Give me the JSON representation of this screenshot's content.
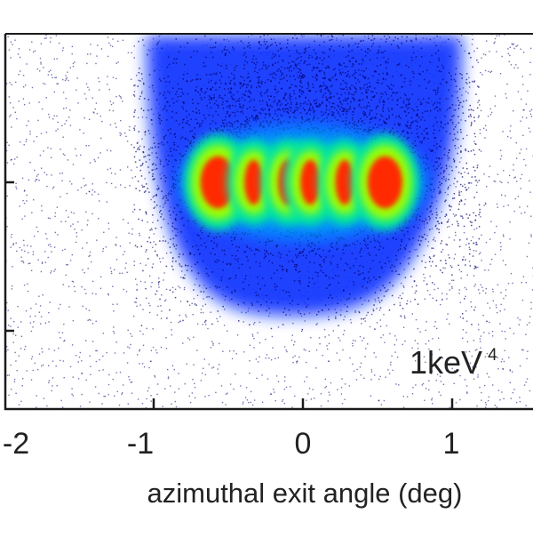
{
  "chart_data": {
    "type": "heatmap",
    "xlabel": "azimuthal exit angle (deg)",
    "ylabel": "",
    "xlim": [
      -2.0,
      1.0
    ],
    "x_ticks": [
      "-2",
      "-1",
      "0",
      "1"
    ],
    "annotation": {
      "text": "1keV",
      "superscript": "4"
    },
    "colormap": [
      "#00006e",
      "#0a32ff",
      "#0096ff",
      "#00e6a0",
      "#a0ff00",
      "#ff2a00"
    ],
    "background_color": "#ffffff",
    "hotspots": [
      {
        "x": -0.57,
        "intensity": 1.0
      },
      {
        "x": -0.33,
        "intensity": 0.75
      },
      {
        "x": -0.1,
        "intensity": 0.8
      },
      {
        "x": 0.05,
        "intensity": 0.8
      },
      {
        "x": 0.28,
        "intensity": 0.75
      },
      {
        "x": 0.55,
        "intensity": 1.0
      }
    ]
  }
}
